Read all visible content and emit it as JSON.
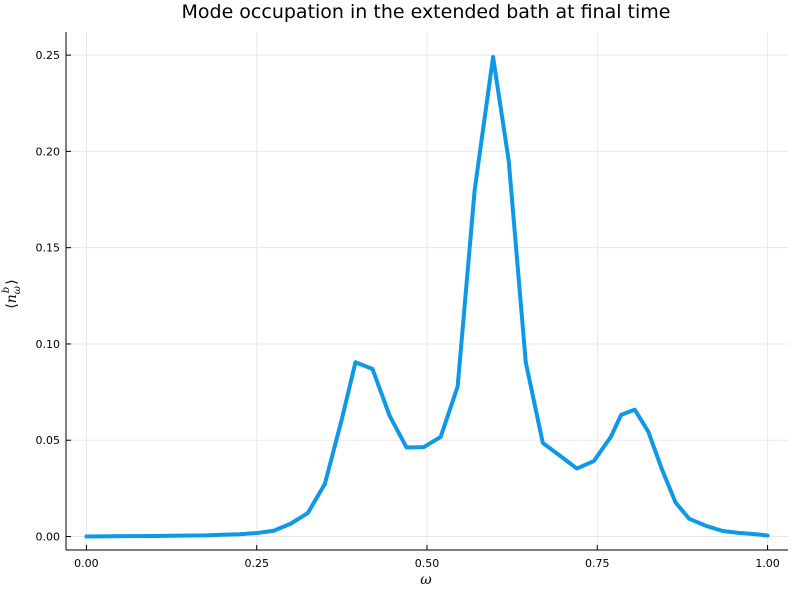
{
  "chart_data": {
    "type": "line",
    "title": "Mode occupation in the extended bath at final time",
    "xlabel": "ω",
    "ylabel": "⟨n_ω^b⟩",
    "xlim": [
      -0.03,
      1.03
    ],
    "ylim": [
      -0.007,
      0.262
    ],
    "xticks": [
      0.0,
      0.25,
      0.5,
      0.75,
      1.0
    ],
    "xtick_labels": [
      "0.00",
      "0.25",
      "0.50",
      "0.75",
      "1.00"
    ],
    "yticks": [
      0.0,
      0.05,
      0.1,
      0.15,
      0.2,
      0.25
    ],
    "ytick_labels": [
      "0.00",
      "0.05",
      "0.10",
      "0.15",
      "0.20",
      "0.25"
    ],
    "grid": true,
    "legend": "none",
    "colors": {
      "series": "#0d98e8",
      "grid": "#e8e8e8",
      "axis": "#000000"
    },
    "series": [
      {
        "x": [
          0.0,
          0.025,
          0.05,
          0.075,
          0.1,
          0.125,
          0.15,
          0.175,
          0.2,
          0.225,
          0.25,
          0.275,
          0.3,
          0.325,
          0.35,
          0.375,
          0.395,
          0.42,
          0.445,
          0.47,
          0.495,
          0.52,
          0.545,
          0.57,
          0.597,
          0.62,
          0.645,
          0.67,
          0.695,
          0.72,
          0.745,
          0.77,
          0.785,
          0.805,
          0.825,
          0.845,
          0.865,
          0.885,
          0.91,
          0.935,
          0.96,
          0.985,
          1.0
        ],
        "values": [
          0.0,
          0.0001,
          0.0002,
          0.0002,
          0.0003,
          0.0004,
          0.0005,
          0.0006,
          0.0009,
          0.0012,
          0.0018,
          0.003,
          0.0067,
          0.0122,
          0.0273,
          0.061,
          0.0905,
          0.087,
          0.0628,
          0.0462,
          0.0464,
          0.0517,
          0.0779,
          0.18,
          0.249,
          0.195,
          0.0905,
          0.0486,
          0.042,
          0.0353,
          0.0392,
          0.0518,
          0.0632,
          0.0659,
          0.0544,
          0.0348,
          0.0176,
          0.0092,
          0.0055,
          0.0028,
          0.0018,
          0.0011,
          0.0005
        ]
      }
    ]
  }
}
